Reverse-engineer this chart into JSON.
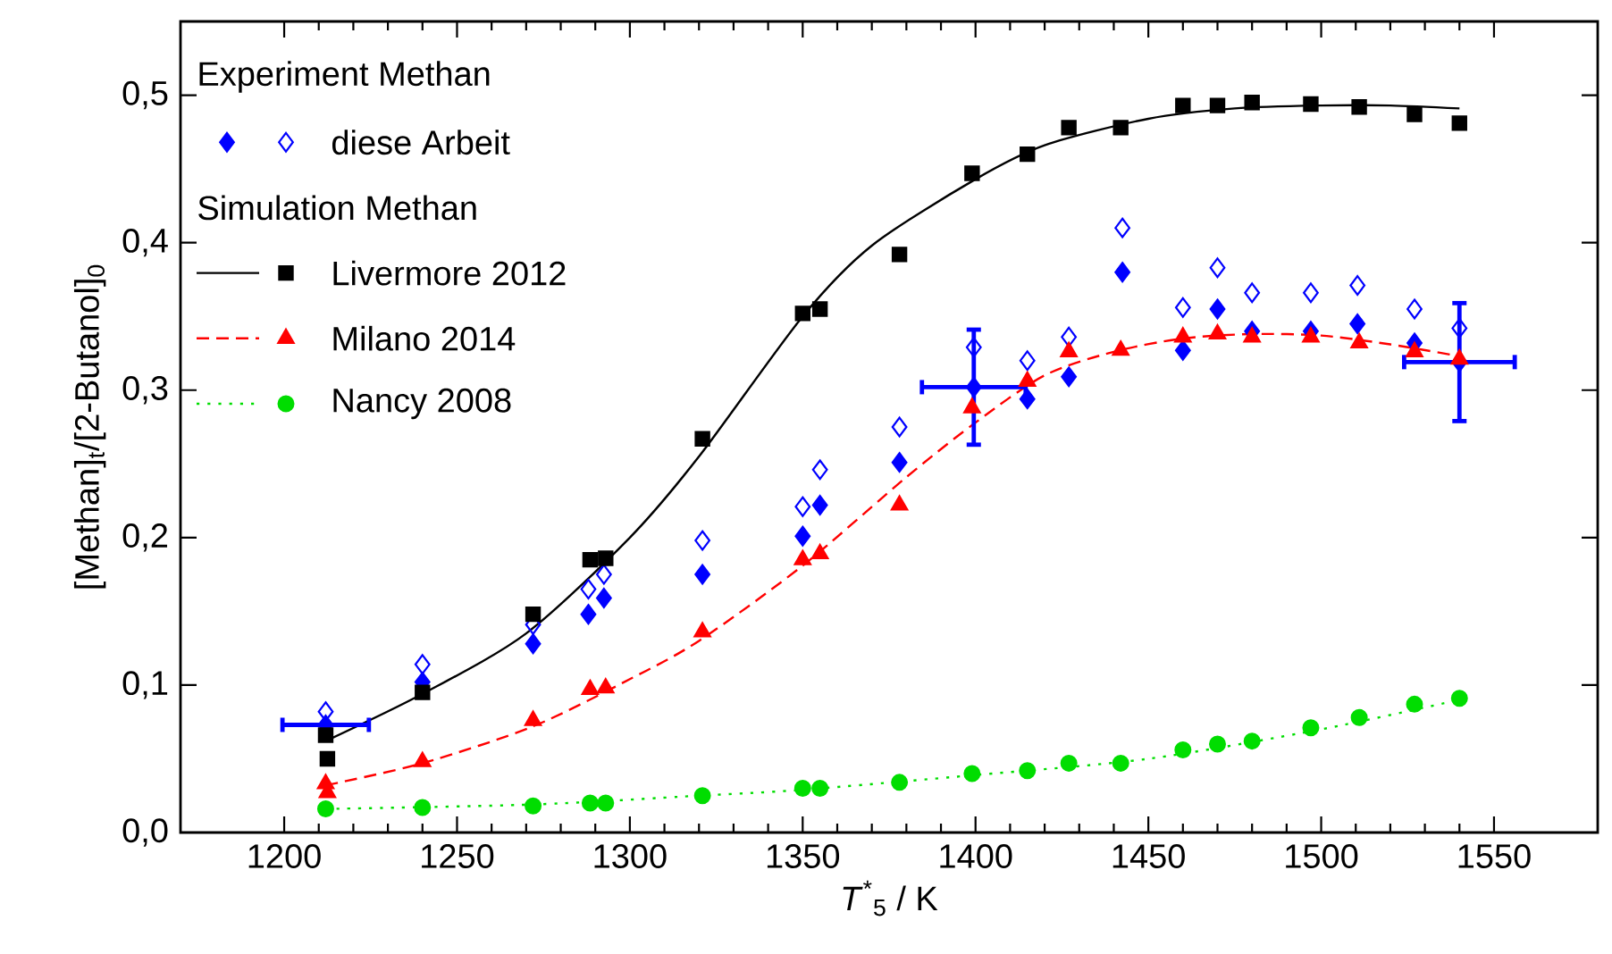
{
  "chart_data": {
    "type": "scatter",
    "xlabel": "*T*$^{*}$$_{5}$ / K",
    "ylabel": "[Methan]$_{t}$/[2-Butanol]$_{0}$",
    "annotations": [
      "Experiment Methan",
      "Simulation Methan"
    ],
    "xlim": [
      1170,
      1580
    ],
    "xticks": [
      1200,
      1250,
      1300,
      1350,
      1400,
      1450,
      1500,
      1550
    ],
    "ylim": [
      0,
      0.55
    ],
    "yticks": [
      {
        "value": 0,
        "label": "0,0"
      },
      {
        "value": 0.1,
        "label": "0,1"
      },
      {
        "value": 0.2,
        "label": "0,2"
      },
      {
        "value": 0.3,
        "label": "0,3"
      },
      {
        "value": 0.4,
        "label": "0,4"
      },
      {
        "value": 0.5,
        "label": "0,5"
      }
    ],
    "legend": "top left",
    "series": [
      {
        "name": "diese Arbeit",
        "marker": "diamond",
        "color": "#0000ff",
        "x": [
          1212,
          1240,
          1272,
          1288,
          1292.5,
          1321,
          1350,
          1355,
          1378,
          1399.5,
          1415,
          1427,
          1442.5,
          1460,
          1470,
          1480,
          1497,
          1510.5,
          1527,
          1540
        ],
        "values": [
          0.073,
          0.102,
          0.128,
          0.148,
          0.159,
          0.175,
          0.201,
          0.222,
          0.251,
          0.302,
          0.294,
          0.309,
          0.38,
          0.327,
          0.355,
          0.34,
          0.34,
          0.345,
          0.332,
          0.319
        ],
        "errors": [
          null,
          null,
          null,
          null,
          null,
          null,
          null,
          null,
          null,
          0.039,
          null,
          null,
          null,
          null,
          null,
          null,
          null,
          null,
          null,
          0.04
        ],
        "xerrors": [
          12.5,
          null,
          null,
          null,
          null,
          null,
          null,
          null,
          null,
          15,
          null,
          null,
          null,
          null,
          null,
          null,
          null,
          null,
          null,
          16
        ]
      },
      {
        "marker": "diamond",
        "color": "#0000ff",
        "x": [
          1212,
          1240,
          1272,
          1288,
          1292.5,
          1321,
          1350,
          1355,
          1378,
          1399.5,
          1415,
          1427,
          1442.5,
          1460,
          1470,
          1480,
          1497,
          1510.5,
          1527,
          1540
        ],
        "values": [
          0.082,
          0.114,
          0.141,
          0.165,
          0.175,
          0.198,
          0.221,
          0.246,
          0.275,
          0.329,
          0.32,
          0.336,
          0.41,
          0.356,
          0.383,
          0.366,
          0.366,
          0.371,
          0.355,
          0.342
        ]
      },
      {
        "name": "Livermore 2012",
        "marker": "square",
        "color": "#000000",
        "x": [
          1212,
          1212.5,
          1240,
          1272,
          1288.5,
          1293,
          1321,
          1350,
          1355,
          1378,
          1399,
          1415,
          1427,
          1442,
          1460,
          1470,
          1480,
          1497,
          1511,
          1527,
          1540
        ],
        "values": [
          0.066,
          0.05,
          0.095,
          0.148,
          0.185,
          0.186,
          0.267,
          0.352,
          0.355,
          0.392,
          0.447,
          0.46,
          0.478,
          0.478,
          0.493,
          0.493,
          0.495,
          0.494,
          0.492,
          0.487,
          0.481
        ]
      },
      {
        "type": "line",
        "marker": "none",
        "line_style": "solid",
        "color": "#000000",
        "x": [
          1212,
          1240,
          1270,
          1300,
          1320,
          1350,
          1370,
          1400,
          1420,
          1450,
          1475,
          1500,
          1520,
          1540
        ],
        "values": [
          0.062,
          0.094,
          0.135,
          0.2,
          0.255,
          0.35,
          0.398,
          0.443,
          0.466,
          0.484,
          0.491,
          0.493,
          0.493,
          0.491
        ]
      },
      {
        "name": "Milano 2014",
        "marker": "triangle",
        "color": "#ff0000",
        "x": [
          1212,
          1212.5,
          1240,
          1272,
          1288.5,
          1293,
          1321,
          1350,
          1355,
          1378,
          1399,
          1415,
          1427,
          1442,
          1460,
          1470,
          1480,
          1497,
          1511,
          1527,
          1540
        ],
        "values": [
          0.033,
          0.027,
          0.048,
          0.076,
          0.097,
          0.098,
          0.136,
          0.185,
          0.189,
          0.222,
          0.288,
          0.306,
          0.326,
          0.327,
          0.336,
          0.338,
          0.336,
          0.336,
          0.332,
          0.326,
          0.321
        ]
      },
      {
        "type": "line",
        "marker": "none",
        "line_style": "dashed",
        "color": "#ff0000",
        "x": [
          1212,
          1240,
          1272,
          1300,
          1320,
          1350,
          1380,
          1400,
          1420,
          1440,
          1460,
          1480,
          1500,
          1520,
          1540
        ],
        "values": [
          0.032,
          0.047,
          0.072,
          0.104,
          0.13,
          0.181,
          0.241,
          0.278,
          0.31,
          0.326,
          0.335,
          0.338,
          0.337,
          0.331,
          0.323
        ]
      },
      {
        "name": "Nancy 2008",
        "marker": "circle",
        "color": "#00dd00",
        "x": [
          1212,
          1240,
          1272,
          1288.5,
          1293,
          1321,
          1350,
          1355,
          1378,
          1399,
          1415,
          1427,
          1442,
          1460,
          1470,
          1480,
          1497,
          1511,
          1527,
          1540
        ],
        "values": [
          0.016,
          0.017,
          0.018,
          0.02,
          0.02,
          0.025,
          0.03,
          0.03,
          0.034,
          0.04,
          0.042,
          0.047,
          0.047,
          0.056,
          0.06,
          0.062,
          0.071,
          0.078,
          0.087,
          0.091
        ]
      },
      {
        "type": "line",
        "marker": "none",
        "line_style": "dotted",
        "color": "#00dd00",
        "x": [
          1212,
          1272,
          1320,
          1350,
          1400,
          1450,
          1500,
          1540
        ],
        "values": [
          0.016,
          0.019,
          0.025,
          0.029,
          0.039,
          0.05,
          0.07,
          0.09
        ]
      }
    ]
  }
}
